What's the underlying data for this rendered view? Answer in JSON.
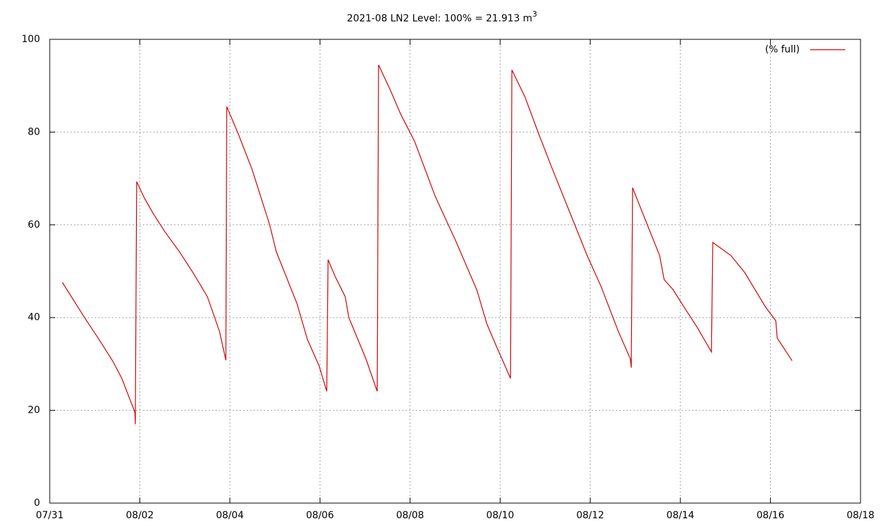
{
  "chart_data": {
    "type": "line",
    "title": "2021-08 LN2 Level: 100% = 21.913 m",
    "title_superscript": "3",
    "x": [
      0.28,
      0.5,
      0.8,
      1.1,
      1.4,
      1.6,
      1.89,
      1.9,
      1.93,
      2.1,
      2.3,
      2.55,
      2.88,
      3.2,
      3.5,
      3.77,
      3.91,
      3.93,
      4.19,
      4.49,
      4.88,
      5.03,
      5.49,
      5.72,
      5.98,
      6.15,
      6.18,
      6.33,
      6.56,
      6.64,
      7.02,
      7.27,
      7.3,
      7.56,
      7.79,
      8.1,
      8.56,
      9.02,
      9.48,
      9.71,
      9.94,
      10.23,
      10.26,
      10.55,
      10.86,
      11.16,
      11.62,
      11.93,
      12.24,
      12.62,
      12.89,
      12.91,
      12.94,
      13.23,
      13.54,
      13.64,
      13.84,
      14.08,
      14.38,
      14.69,
      14.72,
      15.12,
      15.43,
      15.66,
      15.89,
      16.12,
      16.15,
      16.48
    ],
    "series": [
      {
        "name": "(% full)",
        "color": "#cc0000",
        "values": [
          47.6,
          44.2,
          39.6,
          35.2,
          30.6,
          26.9,
          19.6,
          17,
          69.3,
          65.8,
          62.4,
          58.6,
          54.2,
          49.4,
          44.5,
          37,
          30.8,
          85.5,
          79.5,
          72,
          60.1,
          54.2,
          43,
          35.3,
          29.6,
          24.1,
          52.5,
          49,
          44.5,
          40,
          31.1,
          24.1,
          94.5,
          89.1,
          83.9,
          78,
          66.1,
          56.4,
          46,
          38.5,
          33.3,
          26.9,
          93.4,
          87.6,
          79.5,
          72,
          60.9,
          53.4,
          46.7,
          37.1,
          31.1,
          29.2,
          68,
          60.9,
          53.4,
          48.2,
          46,
          42.3,
          37.8,
          32.6,
          56.2,
          53.4,
          49.7,
          46,
          42.3,
          39.3,
          35.6,
          30.7
        ]
      }
    ],
    "xlim": [
      0,
      18
    ],
    "xticks": [
      {
        "value": 0,
        "label": "07/31"
      },
      {
        "value": 2,
        "label": "08/02"
      },
      {
        "value": 4,
        "label": "08/04"
      },
      {
        "value": 6,
        "label": "08/06"
      },
      {
        "value": 8,
        "label": "08/08"
      },
      {
        "value": 10,
        "label": "08/10"
      },
      {
        "value": 12,
        "label": "08/12"
      },
      {
        "value": 14,
        "label": "08/14"
      },
      {
        "value": 16,
        "label": "08/16"
      },
      {
        "value": 18,
        "label": "08/18"
      }
    ],
    "ylim": [
      0,
      100
    ],
    "yticks": [
      0,
      20,
      40,
      60,
      80,
      100
    ],
    "grid": true,
    "legend": "top-right"
  }
}
